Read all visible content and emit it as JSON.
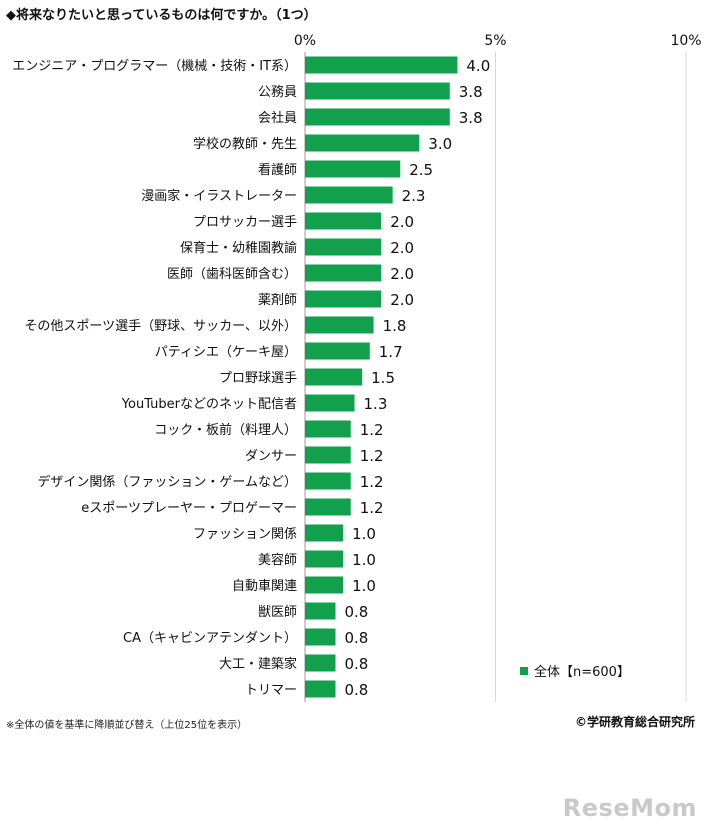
{
  "title": "◆将来なりたいと思っているものは何ですか。（1つ）",
  "note": "※全体の値を基準に降順並び替え（上位25位を表示）",
  "source": "©学研教育総合研究所",
  "logo": "ReseMom",
  "colors": {
    "bar": "#12a04d",
    "grid": "#d7d7d7",
    "axis": "#9a9a9a"
  },
  "chart_data": {
    "type": "bar",
    "orientation": "horizontal",
    "categories": [
      "エンジニア・プログラマー（機械・技術・IT系）",
      "公務員",
      "会社員",
      "学校の教師・先生",
      "看護師",
      "漫画家・イラストレーター",
      "プロサッカー選手",
      "保育士・幼稚園教諭",
      "医師（歯科医師含む）",
      "薬剤師",
      "その他スポーツ選手（野球、サッカー、以外）",
      "パティシエ（ケーキ屋）",
      "プロ野球選手",
      "YouTuberなどのネット配信者",
      "コック・板前（料理人）",
      "ダンサー",
      "デザイン関係（ファッション・ゲームなど）",
      "eスポーツプレーヤー・プロゲーマー",
      "ファッション関係",
      "美容師",
      "自動車関連",
      "獣医師",
      "CA（キャビンアテンダント）",
      "大工・建築家",
      "トリマー"
    ],
    "series": [
      {
        "name": "全体【n=600】",
        "values": [
          4.0,
          3.8,
          3.8,
          3.0,
          2.5,
          2.3,
          2.0,
          2.0,
          2.0,
          2.0,
          1.8,
          1.7,
          1.5,
          1.3,
          1.2,
          1.2,
          1.2,
          1.2,
          1.0,
          1.0,
          1.0,
          0.8,
          0.8,
          0.8,
          0.8
        ]
      }
    ],
    "value_labels": [
      "4.0",
      "3.8",
      "3.8",
      "3.0",
      "2.5",
      "2.3",
      "2.0",
      "2.0",
      "2.0",
      "2.0",
      "1.8",
      "1.7",
      "1.5",
      "1.3",
      "1.2",
      "1.2",
      "1.2",
      "1.2",
      "1.0",
      "1.0",
      "1.0",
      "0.8",
      "0.8",
      "0.8",
      "0.8"
    ],
    "xticks": [
      0,
      5,
      10
    ],
    "xtick_labels": [
      "0%",
      "5%",
      "10%"
    ],
    "xlim": [
      0,
      10
    ],
    "grid": true,
    "legend_position": "bottom-right"
  }
}
